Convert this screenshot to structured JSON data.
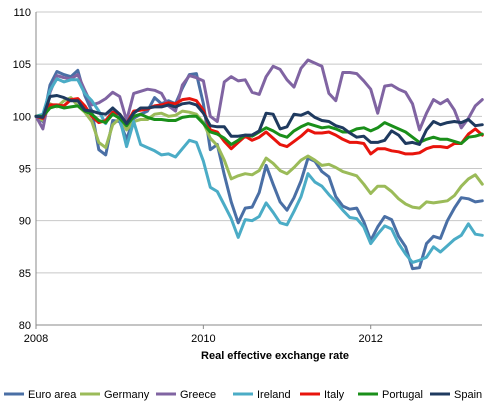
{
  "chart_data": {
    "type": "line",
    "xlabel": "Real effective exchange rate",
    "ylabel": "",
    "ylim": [
      80,
      110
    ],
    "yticks": [
      80,
      85,
      90,
      95,
      100,
      105,
      110
    ],
    "xlim": [
      2008,
      2013.33
    ],
    "xticks": [
      2008,
      2010,
      2012
    ],
    "grid": "horizontal",
    "legend_position": "bottom",
    "series": [
      {
        "name": "Euro area",
        "color": "#4a6fa5",
        "x": [
          2008,
          2008.083,
          2008.167,
          2008.25,
          2008.333,
          2008.417,
          2008.5,
          2008.583,
          2008.667,
          2008.75,
          2008.833,
          2008.917,
          2009,
          2009.083,
          2009.167,
          2009.25,
          2009.333,
          2009.417,
          2009.5,
          2009.583,
          2009.667,
          2009.75,
          2009.833,
          2009.917,
          2010,
          2010.083,
          2010.167,
          2010.25,
          2010.333,
          2010.417,
          2010.5,
          2010.583,
          2010.667,
          2010.75,
          2010.833,
          2010.917,
          2011,
          2011.083,
          2011.167,
          2011.25,
          2011.333,
          2011.417,
          2011.5,
          2011.583,
          2011.667,
          2011.75,
          2011.833,
          2011.917,
          2012,
          2012.083,
          2012.167,
          2012.25,
          2012.333,
          2012.417,
          2012.5,
          2012.583,
          2012.667,
          2012.75,
          2012.833,
          2012.917,
          2013,
          2013.083,
          2013.167,
          2013.25,
          2013.333
        ],
        "y": [
          100,
          99.5,
          103,
          104.3,
          104,
          103.8,
          104.4,
          102,
          100.5,
          96.8,
          96.3,
          99.6,
          99.5,
          97.8,
          99.8,
          100.2,
          100.5,
          101.8,
          101.2,
          101.5,
          101.2,
          102.7,
          104,
          104.1,
          101.2,
          96.8,
          97.3,
          94.4,
          91.8,
          89.8,
          91.2,
          91.3,
          92.7,
          95.3,
          93.5,
          91.8,
          91,
          92.2,
          93.8,
          96,
          95.7,
          94.7,
          94.2,
          92.3,
          91.4,
          91.1,
          91.2,
          89.9,
          88.1,
          89.4,
          90.4,
          90.1,
          88.5,
          87.5,
          85.4,
          85.5,
          87.8,
          88.5,
          88.3,
          90,
          91.2,
          92.2,
          92.1,
          91.8,
          91.9
        ]
      },
      {
        "name": "Germany",
        "color": "#9bbb59",
        "x": [
          2008,
          2008.083,
          2008.167,
          2008.25,
          2008.333,
          2008.417,
          2008.5,
          2008.583,
          2008.667,
          2008.75,
          2008.833,
          2008.917,
          2009,
          2009.083,
          2009.167,
          2009.25,
          2009.333,
          2009.417,
          2009.5,
          2009.583,
          2009.667,
          2009.75,
          2009.833,
          2009.917,
          2010,
          2010.083,
          2010.167,
          2010.25,
          2010.333,
          2010.417,
          2010.5,
          2010.583,
          2010.667,
          2010.75,
          2010.833,
          2010.917,
          2011,
          2011.083,
          2011.167,
          2011.25,
          2011.333,
          2011.417,
          2011.5,
          2011.583,
          2011.667,
          2011.75,
          2011.833,
          2011.917,
          2012,
          2012.083,
          2012.167,
          2012.25,
          2012.333,
          2012.417,
          2012.5,
          2012.583,
          2012.667,
          2012.75,
          2012.833,
          2012.917,
          2013,
          2013.083,
          2013.167,
          2013.25,
          2013.333
        ],
        "y": [
          100,
          99.6,
          101.2,
          100.9,
          101.5,
          101.8,
          101,
          100.4,
          99.5,
          97.5,
          97,
          99.2,
          99.8,
          98.7,
          99.5,
          99.7,
          99.7,
          100.2,
          100.3,
          100,
          100.1,
          100.5,
          100.4,
          100.2,
          99.4,
          97.9,
          97.2,
          95.8,
          94,
          94.3,
          94.5,
          94.4,
          94.8,
          96,
          95.5,
          94.8,
          94.5,
          95.1,
          95.8,
          96.2,
          95.8,
          95.3,
          95.4,
          95.1,
          94.7,
          94.5,
          94.3,
          93.5,
          92.6,
          93.3,
          93.3,
          92.8,
          92.1,
          91.6,
          91.3,
          91.2,
          91.8,
          91.7,
          91.8,
          91.9,
          92.4,
          93.3,
          94,
          94.4,
          93.5
        ]
      },
      {
        "name": "Greece",
        "color": "#8064a2",
        "x": [
          2008,
          2008.083,
          2008.167,
          2008.25,
          2008.333,
          2008.417,
          2008.5,
          2008.583,
          2008.667,
          2008.75,
          2008.833,
          2008.917,
          2009,
          2009.083,
          2009.167,
          2009.25,
          2009.333,
          2009.417,
          2009.5,
          2009.583,
          2009.667,
          2009.75,
          2009.833,
          2009.917,
          2010,
          2010.083,
          2010.167,
          2010.25,
          2010.333,
          2010.417,
          2010.5,
          2010.583,
          2010.667,
          2010.75,
          2010.833,
          2010.917,
          2011,
          2011.083,
          2011.167,
          2011.25,
          2011.333,
          2011.417,
          2011.5,
          2011.583,
          2011.667,
          2011.75,
          2011.833,
          2011.917,
          2012,
          2012.083,
          2012.167,
          2012.25,
          2012.333,
          2012.417,
          2012.5,
          2012.583,
          2012.667,
          2012.75,
          2012.833,
          2012.917,
          2013,
          2013.083,
          2013.167,
          2013.25,
          2013.333
        ],
        "y": [
          100,
          98.8,
          102.3,
          103.9,
          103.7,
          103.6,
          104,
          102.5,
          101.1,
          101.3,
          101.7,
          102.3,
          101.9,
          99.6,
          102.2,
          102.4,
          102.6,
          102.5,
          102.2,
          101,
          100.5,
          103,
          103.9,
          103.7,
          103.4,
          100,
          99.5,
          103.3,
          103.8,
          103.4,
          103.5,
          102.3,
          102.1,
          103.8,
          104.8,
          104.5,
          103.5,
          102.8,
          104.6,
          105.4,
          105.1,
          104.8,
          102.2,
          101.5,
          104.2,
          104.2,
          104.1,
          103.4,
          102.6,
          100.3,
          102.9,
          103,
          102.6,
          102.3,
          101.2,
          98.7,
          100.3,
          101.6,
          101.2,
          101.6,
          100.6,
          98.9,
          99.8,
          101,
          101.6
        ]
      },
      {
        "name": "Ireland",
        "color": "#4bacc6",
        "x": [
          2008,
          2008.083,
          2008.167,
          2008.25,
          2008.333,
          2008.417,
          2008.5,
          2008.583,
          2008.667,
          2008.75,
          2008.833,
          2008.917,
          2009,
          2009.083,
          2009.167,
          2009.25,
          2009.333,
          2009.417,
          2009.5,
          2009.583,
          2009.667,
          2009.75,
          2009.833,
          2009.917,
          2010,
          2010.083,
          2010.167,
          2010.25,
          2010.333,
          2010.417,
          2010.5,
          2010.583,
          2010.667,
          2010.75,
          2010.833,
          2010.917,
          2011,
          2011.083,
          2011.167,
          2011.25,
          2011.333,
          2011.417,
          2011.5,
          2011.583,
          2011.667,
          2011.75,
          2011.833,
          2011.917,
          2012,
          2012.083,
          2012.167,
          2012.25,
          2012.333,
          2012.417,
          2012.5,
          2012.583,
          2012.667,
          2012.75,
          2012.833,
          2012.917,
          2013,
          2013.083,
          2013.167,
          2013.25,
          2013.333
        ],
        "y": [
          100,
          100.2,
          102.5,
          103.6,
          103.3,
          103.5,
          103.5,
          102.2,
          101.5,
          100.5,
          99.3,
          100.8,
          99.8,
          97.1,
          99.5,
          97.3,
          97,
          96.7,
          96.3,
          96.4,
          96.1,
          96.9,
          97.7,
          97.5,
          95.7,
          93.2,
          92.8,
          91.5,
          90.2,
          88.4,
          90.1,
          90,
          90.4,
          91.7,
          90.8,
          89.8,
          89.6,
          90.9,
          92.3,
          94.5,
          93.7,
          93.3,
          92.5,
          91.8,
          91,
          90.3,
          90.2,
          89.4,
          87.8,
          88.7,
          89.5,
          89.2,
          87.8,
          86.8,
          86,
          86.2,
          86.5,
          87.5,
          87,
          87.6,
          88.2,
          88.6,
          89.7,
          88.7,
          88.6
        ]
      },
      {
        "name": "Italy",
        "color": "#e8140c",
        "x": [
          2008,
          2008.083,
          2008.167,
          2008.25,
          2008.333,
          2008.417,
          2008.5,
          2008.583,
          2008.667,
          2008.75,
          2008.833,
          2008.917,
          2009,
          2009.083,
          2009.167,
          2009.25,
          2009.333,
          2009.417,
          2009.5,
          2009.583,
          2009.667,
          2009.75,
          2009.833,
          2009.917,
          2010,
          2010.083,
          2010.167,
          2010.25,
          2010.333,
          2010.417,
          2010.5,
          2010.583,
          2010.667,
          2010.75,
          2010.833,
          2010.917,
          2011,
          2011.083,
          2011.167,
          2011.25,
          2011.333,
          2011.417,
          2011.5,
          2011.583,
          2011.667,
          2011.75,
          2011.833,
          2011.917,
          2012,
          2012.083,
          2012.167,
          2012.25,
          2012.333,
          2012.417,
          2012.5,
          2012.583,
          2012.667,
          2012.75,
          2012.833,
          2012.917,
          2013,
          2013.083,
          2013.167,
          2013.25,
          2013.333
        ],
        "y": [
          100,
          99.8,
          101.1,
          101.1,
          101,
          101.6,
          101.7,
          101,
          100,
          99.4,
          99.6,
          100.4,
          100.2,
          99.3,
          100.5,
          100.6,
          100.7,
          101,
          101.1,
          101.3,
          101.2,
          101.6,
          101.7,
          101.5,
          100.6,
          98.7,
          98.5,
          97.6,
          96.9,
          97.5,
          98.1,
          97.7,
          98,
          98.5,
          97.9,
          97.3,
          97.1,
          97.6,
          98.1,
          98.7,
          98.4,
          98.4,
          98.5,
          98.2,
          97.8,
          97.5,
          97.5,
          97.4,
          96.4,
          96.9,
          96.9,
          96.7,
          96.6,
          96.4,
          96.4,
          96.5,
          96.9,
          97.1,
          97.1,
          97,
          97.4,
          97.4,
          98.3,
          98.8,
          98.2
        ]
      },
      {
        "name": "Portugal",
        "color": "#1a8f1a",
        "x": [
          2008,
          2008.083,
          2008.167,
          2008.25,
          2008.333,
          2008.417,
          2008.5,
          2008.583,
          2008.667,
          2008.75,
          2008.833,
          2008.917,
          2009,
          2009.083,
          2009.167,
          2009.25,
          2009.333,
          2009.417,
          2009.5,
          2009.583,
          2009.667,
          2009.75,
          2009.833,
          2009.917,
          2010,
          2010.083,
          2010.167,
          2010.25,
          2010.333,
          2010.417,
          2010.5,
          2010.583,
          2010.667,
          2010.75,
          2010.833,
          2010.917,
          2011,
          2011.083,
          2011.167,
          2011.25,
          2011.333,
          2011.417,
          2011.5,
          2011.583,
          2011.667,
          2011.75,
          2011.833,
          2011.917,
          2012,
          2012.083,
          2012.167,
          2012.25,
          2012.333,
          2012.417,
          2012.5,
          2012.583,
          2012.667,
          2012.75,
          2012.833,
          2012.917,
          2013,
          2013.083,
          2013.167,
          2013.25,
          2013.333
        ],
        "y": [
          100,
          100,
          100.8,
          101,
          100.8,
          100.9,
          101,
          100.5,
          100.2,
          99.6,
          99.4,
          100.2,
          99.8,
          99.1,
          100,
          100.2,
          99.9,
          99.7,
          99.7,
          99.6,
          99.6,
          99.9,
          100,
          100,
          99.3,
          98.5,
          98.3,
          97.9,
          97.3,
          97.7,
          98.2,
          98.1,
          98.5,
          98.9,
          98.6,
          98.2,
          98,
          98.6,
          99,
          99.3,
          99.1,
          98.9,
          99,
          98.8,
          98.5,
          98.5,
          98.8,
          98.9,
          98.6,
          98.9,
          99.4,
          99.1,
          98.8,
          98.5,
          98,
          97.5,
          97.8,
          98,
          97.8,
          97.8,
          97.6,
          97.4,
          98,
          98.1,
          98.3
        ]
      },
      {
        "name": "Spain",
        "color": "#1f3a5f",
        "x": [
          2008,
          2008.083,
          2008.167,
          2008.25,
          2008.333,
          2008.417,
          2008.5,
          2008.583,
          2008.667,
          2008.75,
          2008.833,
          2008.917,
          2009,
          2009.083,
          2009.167,
          2009.25,
          2009.333,
          2009.417,
          2009.5,
          2009.583,
          2009.667,
          2009.75,
          2009.833,
          2009.917,
          2010,
          2010.083,
          2010.167,
          2010.25,
          2010.333,
          2010.417,
          2010.5,
          2010.583,
          2010.667,
          2010.75,
          2010.833,
          2010.917,
          2011,
          2011.083,
          2011.167,
          2011.25,
          2011.333,
          2011.417,
          2011.5,
          2011.583,
          2011.667,
          2011.75,
          2011.833,
          2011.917,
          2012,
          2012.083,
          2012.167,
          2012.25,
          2012.333,
          2012.417,
          2012.5,
          2012.583,
          2012.667,
          2012.75,
          2012.833,
          2012.917,
          2013,
          2013.083,
          2013.167,
          2013.25,
          2013.333
        ],
        "y": [
          100,
          99.9,
          101.9,
          102,
          101.8,
          101.5,
          101.5,
          100.6,
          100.5,
          100.3,
          100.2,
          100.8,
          100.2,
          99.3,
          100.3,
          100.8,
          100.8,
          100.9,
          100.9,
          101.1,
          100.9,
          101.2,
          101.3,
          101.1,
          100.3,
          99.1,
          99,
          99,
          98.1,
          98.1,
          98.2,
          98.2,
          98.6,
          100.3,
          100.2,
          98.8,
          99,
          100.2,
          100.1,
          100.4,
          99.9,
          99.6,
          99.5,
          99.1,
          98.9,
          98.4,
          98,
          98.1,
          97.5,
          97.5,
          97.7,
          98.6,
          98.2,
          97.4,
          97.5,
          97.3,
          98.7,
          99.5,
          99.2,
          99.4,
          99.5,
          99.4,
          99.7,
          99.1,
          99.2
        ]
      }
    ]
  }
}
